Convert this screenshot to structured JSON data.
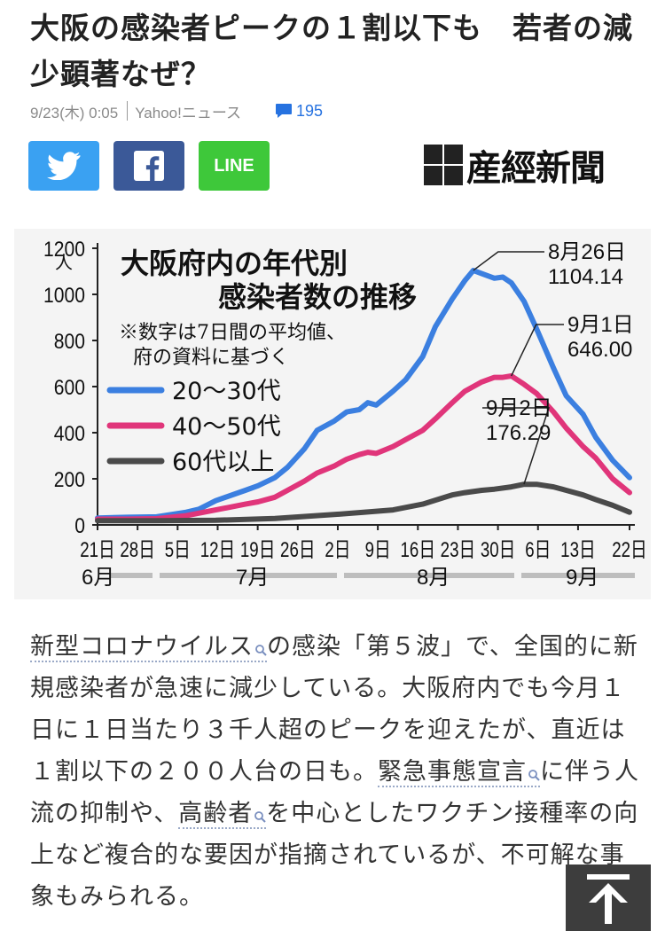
{
  "article": {
    "headline": "大阪の感染者ピークの１割以下も　若者の減少顕著なぜ？",
    "date": "9/23(木) 0:05",
    "source": "Yahoo!ニュース",
    "comment_count": "195",
    "publisher": "産經新聞",
    "body": {
      "seg1": "新型コロナウイルス",
      "seg2": "の感染「第５波」で、全国的に新規感染者が急速に減少している。大阪府内でも今月１日に１日当たり３千人超のピークを迎えたが、直近は１割以下の２００人台の日も。",
      "seg3": "緊急事態宣言",
      "seg4": "に伴う人流の抑制や、",
      "seg5": "高齢者",
      "seg6": "を中心としたワクチン接種率の向上など複合的な要因が指摘されているが、不可解な事象もみられる。"
    }
  },
  "share": {
    "line_label": "LINE"
  },
  "icons": {
    "twitter": "twitter-bird-icon",
    "facebook": "facebook-f-icon",
    "comment": "comment-bubble-icon",
    "search": "magnifier-icon",
    "back_to_top": "arrow-up-icon"
  },
  "chart_data": {
    "type": "line",
    "title_line1": "大阪府内の年代別",
    "title_line2": "感染者数の推移",
    "note_line1": "※数字は7日間の平均値、",
    "note_line2": "府の資料に基づく",
    "y_unit": "人",
    "ylim": [
      0,
      1200
    ],
    "y_ticks": [
      "1200",
      "1000",
      "800",
      "600",
      "400",
      "200",
      "0"
    ],
    "x_ticks": [
      "21日",
      "28日",
      "5日",
      "12日",
      "19日",
      "26日",
      "2日",
      "9日",
      "16日",
      "23日",
      "30日",
      "6日",
      "13日",
      "22日"
    ],
    "months": [
      "6月",
      "7月",
      "8月",
      "9月"
    ],
    "x_start": "6月21日",
    "x_end": "9月22日",
    "grid": false,
    "legend_position": "top-left",
    "colors": {
      "20s30s": "#3b7fe0",
      "40s50s": "#e0357a",
      "60plus": "#4a4a4a"
    },
    "series": [
      {
        "name": "20～30代",
        "points": [
          [
            0,
            30
          ],
          [
            7,
            33
          ],
          [
            14,
            35
          ],
          [
            21,
            55
          ],
          [
            24,
            68
          ],
          [
            28,
            105
          ],
          [
            35,
            150
          ],
          [
            38,
            170
          ],
          [
            42,
            205
          ],
          [
            45,
            250
          ],
          [
            49,
            330
          ],
          [
            52,
            410
          ],
          [
            56,
            450
          ],
          [
            59,
            490
          ],
          [
            62,
            500
          ],
          [
            64,
            530
          ],
          [
            66,
            520
          ],
          [
            70,
            580
          ],
          [
            73,
            630
          ],
          [
            77,
            730
          ],
          [
            80,
            860
          ],
          [
            84,
            980
          ],
          [
            87,
            1060
          ],
          [
            89,
            1104
          ],
          [
            91,
            1090
          ],
          [
            94,
            1070
          ],
          [
            96,
            1075
          ],
          [
            98,
            1050
          ],
          [
            101,
            970
          ],
          [
            104,
            850
          ],
          [
            108,
            680
          ],
          [
            111,
            560
          ],
          [
            115,
            480
          ],
          [
            118,
            380
          ],
          [
            122,
            280
          ],
          [
            126,
            205
          ]
        ]
      },
      {
        "name": "40～50代",
        "points": [
          [
            0,
            25
          ],
          [
            7,
            25
          ],
          [
            14,
            27
          ],
          [
            21,
            40
          ],
          [
            28,
            65
          ],
          [
            35,
            90
          ],
          [
            38,
            100
          ],
          [
            42,
            120
          ],
          [
            45,
            150
          ],
          [
            49,
            190
          ],
          [
            52,
            225
          ],
          [
            56,
            255
          ],
          [
            59,
            285
          ],
          [
            62,
            305
          ],
          [
            64,
            315
          ],
          [
            66,
            310
          ],
          [
            70,
            340
          ],
          [
            73,
            370
          ],
          [
            77,
            410
          ],
          [
            80,
            460
          ],
          [
            84,
            530
          ],
          [
            87,
            580
          ],
          [
            91,
            620
          ],
          [
            94,
            640
          ],
          [
            96,
            640
          ],
          [
            98,
            646
          ],
          [
            101,
            610
          ],
          [
            104,
            570
          ],
          [
            108,
            490
          ],
          [
            111,
            420
          ],
          [
            115,
            340
          ],
          [
            118,
            290
          ],
          [
            122,
            200
          ],
          [
            126,
            140
          ]
        ]
      },
      {
        "name": "60代以上",
        "points": [
          [
            0,
            18
          ],
          [
            14,
            18
          ],
          [
            28,
            20
          ],
          [
            42,
            28
          ],
          [
            56,
            45
          ],
          [
            63,
            55
          ],
          [
            70,
            65
          ],
          [
            77,
            90
          ],
          [
            84,
            130
          ],
          [
            87,
            140
          ],
          [
            91,
            150
          ],
          [
            94,
            155
          ],
          [
            98,
            165
          ],
          [
            101,
            176
          ],
          [
            104,
            176
          ],
          [
            108,
            165
          ],
          [
            111,
            150
          ],
          [
            115,
            130
          ],
          [
            118,
            110
          ],
          [
            122,
            85
          ],
          [
            126,
            55
          ]
        ]
      }
    ],
    "annotations": [
      {
        "label1": "8月26日",
        "label2": "1104.14",
        "x": 89,
        "y": 1104.14
      },
      {
        "label1": "9月1日",
        "label2": "646.00",
        "x": 98,
        "y": 646.0
      },
      {
        "label1": "9月2日",
        "label2": "176.29",
        "x": 101,
        "y": 176.29
      }
    ]
  }
}
